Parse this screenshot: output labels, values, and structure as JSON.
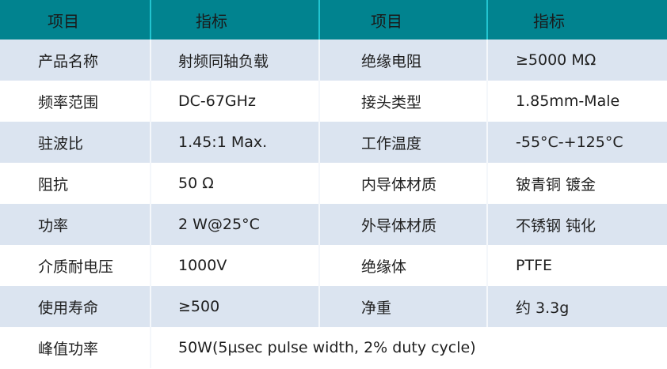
{
  "header": [
    "项目",
    "指标",
    "项目",
    "指标"
  ],
  "rows": [
    [
      "产品名称",
      "射频同轴负载",
      "绝缘电阻",
      "≥5000 MΩ"
    ],
    [
      "频率范围",
      "DC-67GHz",
      "接头类型",
      "1.85mm-Male"
    ],
    [
      "驻波比",
      "1.45:1 Max.",
      "工作温度",
      "-55°C-+125°C"
    ],
    [
      "阻抗",
      "50 Ω",
      "内导体材质",
      "铍青铜 镀金"
    ],
    [
      "功率",
      "2 W@25°C",
      "外导体材质",
      "不锈钢 钝化"
    ],
    [
      "介质耐电压",
      "1000V",
      "绝缘体",
      "PTFE"
    ],
    [
      "使用寿命",
      "≥500",
      "净重",
      "约 3.3g"
    ]
  ],
  "last_row": {
    "label": "峰值功率",
    "value": "50W(5µsec pulse width, 2% duty cycle)"
  },
  "colors": {
    "header": "#01838f",
    "row_alt": "#dbe4f0"
  }
}
